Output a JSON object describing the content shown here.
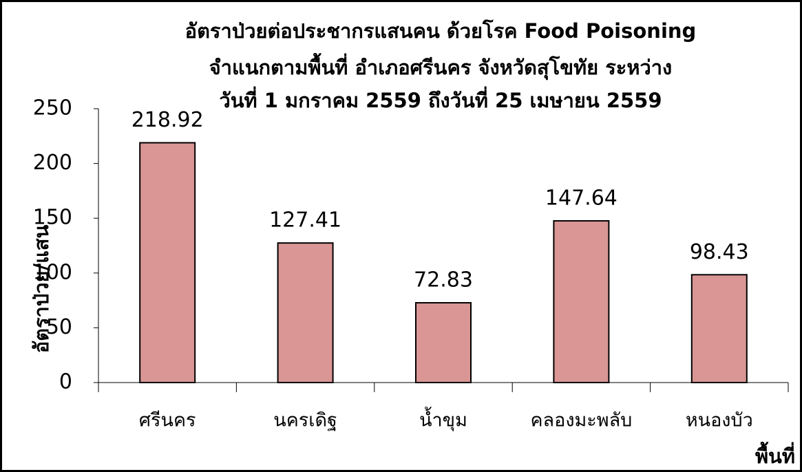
{
  "chart_data": {
    "type": "bar",
    "title": [
      "อัตราป่วยต่อประชากรแสนคน ด้วยโรค Food Poisoning",
      "จำแนกตามพื้นที่  อำเภอศรีนคร จังหวัดสุโขทัย  ระหว่าง",
      "วันที่  1 มกราคม 2559  ถึงวันที่  25 เมษายน 2559"
    ],
    "y_label": "อัตราป่วย/แสน",
    "x_label": "พื้นที่",
    "categories": [
      "ศรีนคร",
      "นครเดิฐ",
      "น้ำขุม",
      "คลองมะพลับ",
      "หนองบัว"
    ],
    "values": [
      218.92,
      127.41,
      72.83,
      147.64,
      98.43
    ],
    "color": "#d99694",
    "ylim": [
      0,
      250
    ],
    "yticks": [
      0,
      50,
      100,
      150,
      200,
      250
    ],
    "grid": false
  }
}
